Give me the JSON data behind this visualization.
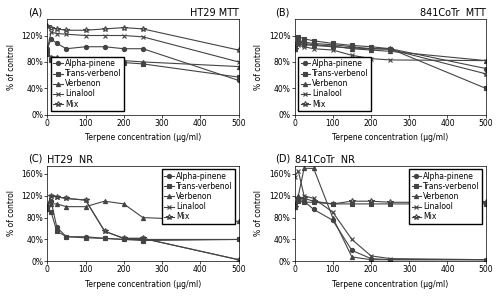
{
  "x": [
    0,
    10,
    25,
    50,
    100,
    150,
    200,
    250,
    500
  ],
  "panels": [
    {
      "label": "(A)",
      "title": "HT29 MTT",
      "title_loc": "right",
      "ylim": [
        0,
        145
      ],
      "yticks": [
        0,
        40,
        80,
        120
      ],
      "ytick_labels": [
        "0%",
        "40%",
        "80%",
        "120%"
      ],
      "legend_loc": "lower left",
      "legend_bbox": null,
      "series": [
        {
          "name": "Alpha-pinene",
          "marker": "o",
          "values": [
            100,
            115,
            108,
            100,
            103,
            103,
            100,
            100,
            52
          ]
        },
        {
          "name": "Trans-verbenol",
          "marker": "s",
          "values": [
            95,
            83,
            82,
            82,
            82,
            80,
            79,
            77,
            57
          ]
        },
        {
          "name": "Verbenon",
          "marker": "^",
          "values": [
            92,
            88,
            87,
            85,
            84,
            83,
            82,
            80,
            73
          ]
        },
        {
          "name": "Linalool",
          "marker": "x",
          "values": [
            100,
            125,
            123,
            122,
            120,
            120,
            120,
            118,
            80
          ]
        },
        {
          "name": "Mix",
          "marker": "*",
          "values": [
            135,
            132,
            130,
            128,
            128,
            130,
            132,
            130,
            98
          ]
        }
      ]
    },
    {
      "label": "(B)",
      "title": "841CoTr  MTT",
      "title_loc": "right",
      "ylim": [
        0,
        145
      ],
      "yticks": [
        0,
        40,
        80,
        120
      ],
      "ytick_labels": [
        "0%",
        "40%",
        "80%",
        "120%"
      ],
      "legend_loc": "lower left",
      "legend_bbox": null,
      "series": [
        {
          "name": "Alpha-pinene",
          "marker": "o",
          "values": [
            100,
            113,
            110,
            108,
            106,
            103,
            100,
            100,
            70
          ]
        },
        {
          "name": "Trans-verbenol",
          "marker": "s",
          "values": [
            100,
            118,
            115,
            112,
            108,
            105,
            103,
            100,
            40
          ]
        },
        {
          "name": "Verbenon",
          "marker": "^",
          "values": [
            100,
            110,
            108,
            106,
            104,
            100,
            98,
            96,
            82
          ]
        },
        {
          "name": "Linalool",
          "marker": "x",
          "values": [
            100,
            105,
            103,
            100,
            98,
            90,
            85,
            83,
            82
          ]
        },
        {
          "name": "Mix",
          "marker": "*",
          "values": [
            100,
            108,
            106,
            105,
            103,
            101,
            100,
            99,
            62
          ]
        }
      ]
    },
    {
      "label": "(C)",
      "title": "HT29  NR",
      "title_loc": "left",
      "ylim": [
        0,
        175
      ],
      "yticks": [
        0,
        40,
        80,
        120,
        160
      ],
      "ytick_labels": [
        "0%",
        "40%",
        "80%",
        "120%",
        "160%"
      ],
      "legend_loc": "upper right",
      "legend_bbox": null,
      "series": [
        {
          "name": "Alpha-pinene",
          "marker": "o",
          "values": [
            100,
            110,
            62,
            45,
            45,
            42,
            40,
            40,
            40
          ]
        },
        {
          "name": "Trans-verbenol",
          "marker": "s",
          "values": [
            100,
            90,
            55,
            45,
            43,
            42,
            40,
            38,
            40
          ]
        },
        {
          "name": "Verbenon",
          "marker": "^",
          "values": [
            95,
            105,
            105,
            100,
            100,
            110,
            105,
            80,
            73
          ]
        },
        {
          "name": "Linalool",
          "marker": "x",
          "values": [
            100,
            120,
            118,
            115,
            112,
            55,
            42,
            42,
            3
          ]
        },
        {
          "name": "Mix",
          "marker": "*",
          "values": [
            100,
            120,
            118,
            115,
            112,
            55,
            42,
            42,
            3
          ]
        }
      ]
    },
    {
      "label": "(D)",
      "title": "841CoTr  NR",
      "title_loc": "left",
      "ylim": [
        0,
        175
      ],
      "yticks": [
        0,
        40,
        80,
        120,
        160
      ],
      "ytick_labels": [
        "0%",
        "40%",
        "80%",
        "120%",
        "160%"
      ],
      "legend_loc": "upper right",
      "legend_bbox": null,
      "series": [
        {
          "name": "Alpha-pinene",
          "marker": "o",
          "values": [
            100,
            115,
            110,
            95,
            75,
            20,
            5,
            3,
            3
          ]
        },
        {
          "name": "Trans-verbenol",
          "marker": "s",
          "values": [
            105,
            110,
            108,
            108,
            105,
            105,
            105,
            105,
            105
          ]
        },
        {
          "name": "Verbenon",
          "marker": "^",
          "values": [
            100,
            120,
            170,
            170,
            80,
            8,
            3,
            3,
            3
          ]
        },
        {
          "name": "Linalool",
          "marker": "x",
          "values": [
            155,
            165,
            120,
            115,
            90,
            40,
            10,
            5,
            3
          ]
        },
        {
          "name": "Mix",
          "marker": "*",
          "values": [
            100,
            115,
            115,
            110,
            105,
            110,
            110,
            108,
            108
          ]
        }
      ]
    }
  ],
  "xlabel": "Terpene concentration (μg/ml)",
  "ylabel": "% of control",
  "xticks": [
    0,
    100,
    200,
    300,
    400,
    500
  ],
  "xlim": [
    0,
    500
  ],
  "background": "#ffffff",
  "color": "#444444",
  "linewidth": 0.8,
  "markersize": 3,
  "fontsize_title": 7,
  "fontsize_label": 5.5,
  "fontsize_tick": 5.5,
  "fontsize_legend": 5.5,
  "fontsize_panel_label": 7
}
